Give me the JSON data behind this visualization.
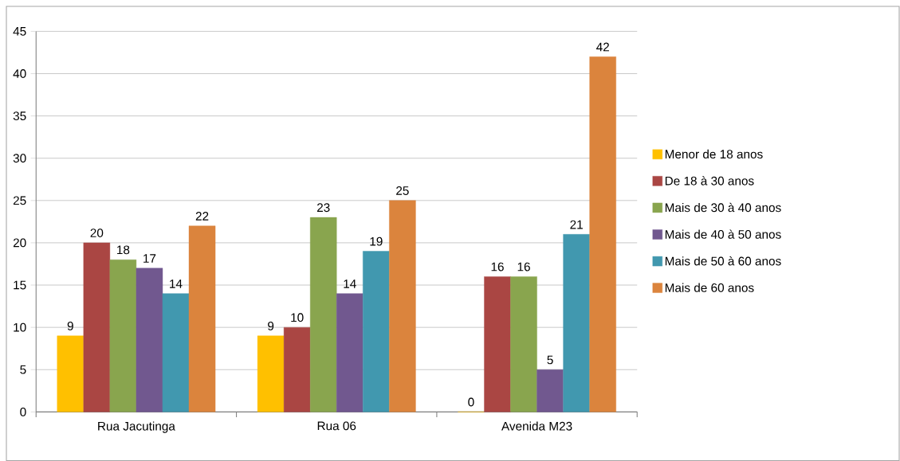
{
  "chart_data": {
    "type": "bar",
    "categories": [
      "Rua Jacutinga",
      "Rua 06",
      "Avenida M23"
    ],
    "series": [
      {
        "name": "Menor de 18 anos",
        "color": "#ffc000",
        "values": [
          9,
          9,
          0
        ]
      },
      {
        "name": "De 18 à 30 anos",
        "color": "#aa4643",
        "values": [
          20,
          10,
          16
        ]
      },
      {
        "name": "Mais de 30 à 40 anos",
        "color": "#89a54e",
        "values": [
          18,
          23,
          16
        ]
      },
      {
        "name": "Mais de 40 à 50 anos",
        "color": "#71588f",
        "values": [
          17,
          14,
          5
        ]
      },
      {
        "name": "Mais de 50 à 60 anos",
        "color": "#4198af",
        "values": [
          14,
          19,
          21
        ]
      },
      {
        "name": "Mais de 60 anos",
        "color": "#db843d",
        "values": [
          22,
          25,
          42
        ]
      }
    ],
    "ylim": [
      0,
      45
    ],
    "yticks": [
      0,
      5,
      10,
      15,
      20,
      25,
      30,
      35,
      40,
      45
    ],
    "grid": "y",
    "legend": "right",
    "data_labels": true
  }
}
